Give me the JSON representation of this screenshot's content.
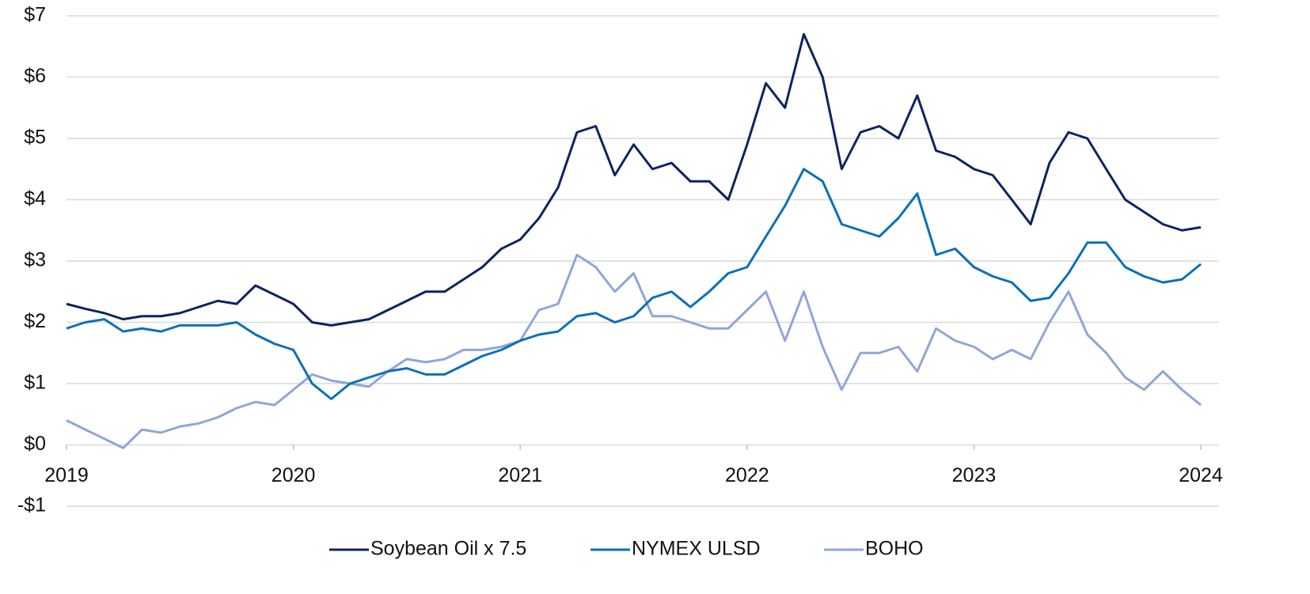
{
  "chart_data": {
    "type": "line",
    "x": [
      2019,
      2019.083,
      2019.167,
      2019.25,
      2019.333,
      2019.417,
      2019.5,
      2019.583,
      2019.667,
      2019.75,
      2019.833,
      2019.917,
      2020,
      2020.083,
      2020.167,
      2020.25,
      2020.333,
      2020.417,
      2020.5,
      2020.583,
      2020.667,
      2020.75,
      2020.833,
      2020.917,
      2021,
      2021.083,
      2021.167,
      2021.25,
      2021.333,
      2021.417,
      2021.5,
      2021.583,
      2021.667,
      2021.75,
      2021.833,
      2021.917,
      2022,
      2022.083,
      2022.167,
      2022.25,
      2022.333,
      2022.417,
      2022.5,
      2022.583,
      2022.667,
      2022.75,
      2022.833,
      2022.917,
      2023,
      2023.083,
      2023.167,
      2023.25,
      2023.333,
      2023.417,
      2023.5,
      2023.583,
      2023.667,
      2023.75,
      2023.833,
      2023.917,
      2024
    ],
    "series": [
      {
        "name": "Soybean Oil x 7.5",
        "color": "#0d2461",
        "values": [
          2.3,
          2.22,
          2.15,
          2.05,
          2.1,
          2.1,
          2.15,
          2.25,
          2.35,
          2.3,
          2.6,
          2.45,
          2.3,
          2.0,
          1.95,
          2.0,
          2.05,
          2.2,
          2.35,
          2.5,
          2.5,
          2.7,
          2.9,
          3.2,
          3.35,
          3.7,
          4.2,
          5.1,
          5.2,
          4.4,
          4.9,
          4.5,
          4.6,
          4.3,
          4.3,
          4.0,
          4.9,
          5.9,
          5.5,
          6.7,
          6.0,
          4.5,
          5.1,
          5.2,
          5.0,
          5.7,
          4.8,
          4.7,
          4.5,
          4.4,
          4.0,
          3.6,
          4.6,
          5.1,
          5.0,
          4.5,
          4.0,
          3.8,
          3.6,
          3.5,
          3.55
        ]
      },
      {
        "name": "NYMEX ULSD",
        "color": "#0a70b8",
        "values": [
          1.9,
          2.0,
          2.05,
          1.85,
          1.9,
          1.85,
          1.95,
          1.95,
          1.95,
          2.0,
          1.8,
          1.65,
          1.55,
          1.0,
          0.75,
          1.0,
          1.1,
          1.2,
          1.25,
          1.15,
          1.15,
          1.3,
          1.45,
          1.55,
          1.7,
          1.8,
          1.85,
          2.1,
          2.15,
          2.0,
          2.1,
          2.4,
          2.5,
          2.25,
          2.5,
          2.8,
          2.9,
          3.4,
          3.9,
          4.5,
          4.3,
          3.6,
          3.5,
          3.4,
          3.7,
          4.1,
          3.1,
          3.2,
          2.9,
          2.75,
          2.65,
          2.35,
          2.4,
          2.8,
          3.3,
          3.3,
          2.9,
          2.75,
          2.65,
          2.7,
          2.95
        ]
      },
      {
        "name": "BOHO",
        "color": "#8fa6d8",
        "values": [
          0.4,
          0.25,
          0.1,
          -0.05,
          0.25,
          0.2,
          0.3,
          0.35,
          0.45,
          0.6,
          0.7,
          0.65,
          0.9,
          1.15,
          1.05,
          1.0,
          0.95,
          1.2,
          1.4,
          1.35,
          1.4,
          1.55,
          1.55,
          1.6,
          1.7,
          2.2,
          2.3,
          3.1,
          2.9,
          2.5,
          2.8,
          2.1,
          2.1,
          2.0,
          1.9,
          1.9,
          2.2,
          2.5,
          1.7,
          2.5,
          1.6,
          0.9,
          1.5,
          1.5,
          1.6,
          1.2,
          1.9,
          1.7,
          1.6,
          1.4,
          1.55,
          1.4,
          2.0,
          2.5,
          1.8,
          1.5,
          1.1,
          0.9,
          1.2,
          0.9,
          0.65
        ]
      }
    ],
    "xlim": [
      2019,
      2024.08
    ],
    "xticks": [
      2019,
      2020,
      2021,
      2022,
      2023,
      2024
    ],
    "ylim": [
      -1,
      7
    ],
    "yticks": [
      {
        "value": -1,
        "label": "-$1"
      },
      {
        "value": 0,
        "label": "$0"
      },
      {
        "value": 1,
        "label": "$1"
      },
      {
        "value": 2,
        "label": "$2"
      },
      {
        "value": 3,
        "label": "$3"
      },
      {
        "value": 4,
        "label": "$4"
      },
      {
        "value": 5,
        "label": "$5"
      },
      {
        "value": 6,
        "label": "$6"
      },
      {
        "value": 7,
        "label": "$7"
      }
    ],
    "grid": true,
    "legend": "bottom"
  }
}
